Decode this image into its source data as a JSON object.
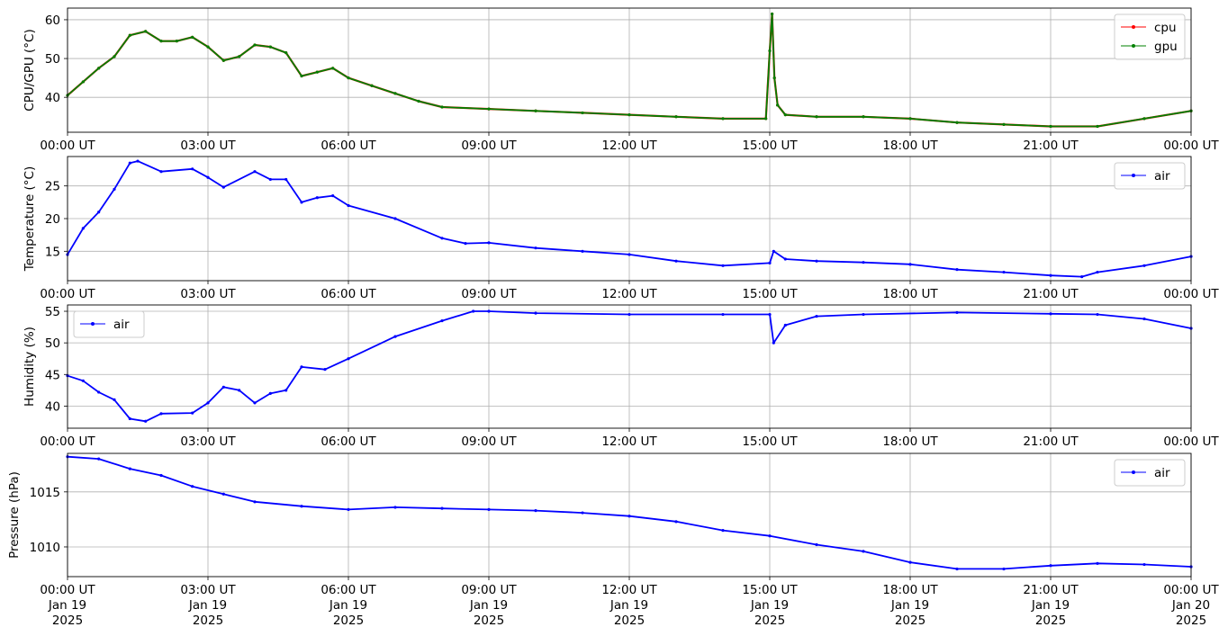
{
  "chart_data": [
    {
      "type": "line",
      "ylabel": "CPU/GPU (°C)",
      "ylim": [
        31,
        63
      ],
      "yticks": [
        40,
        50,
        60
      ],
      "xlim": [
        "2025-01-19T00:00",
        "2025-01-20T00:00"
      ],
      "grid": true,
      "legend_position": "upper-right",
      "x_tick_labels": [
        "00:00 UT",
        "03:00 UT",
        "06:00 UT",
        "09:00 UT",
        "12:00 UT",
        "15:00 UT",
        "18:00 UT",
        "21:00 UT",
        "00:00 UT"
      ],
      "series": [
        {
          "name": "cpu",
          "color": "#ff0000",
          "points": [
            [
              "2025-01-19T00:00",
              40.5
            ],
            [
              "2025-01-19T00:20",
              44
            ],
            [
              "2025-01-19T00:40",
              47.5
            ],
            [
              "2025-01-19T01:00",
              50.5
            ],
            [
              "2025-01-19T01:20",
              56
            ],
            [
              "2025-01-19T01:40",
              57
            ],
            [
              "2025-01-19T02:00",
              54.5
            ],
            [
              "2025-01-19T02:20",
              54.5
            ],
            [
              "2025-01-19T02:40",
              55.5
            ],
            [
              "2025-01-19T03:00",
              53
            ],
            [
              "2025-01-19T03:20",
              49.5
            ],
            [
              "2025-01-19T03:40",
              50.5
            ],
            [
              "2025-01-19T04:00",
              53.5
            ],
            [
              "2025-01-19T04:20",
              53
            ],
            [
              "2025-01-19T04:40",
              51.5
            ],
            [
              "2025-01-19T05:00",
              45.5
            ],
            [
              "2025-01-19T05:20",
              46.5
            ],
            [
              "2025-01-19T05:40",
              47.5
            ],
            [
              "2025-01-19T06:00",
              45
            ],
            [
              "2025-01-19T06:30",
              43
            ],
            [
              "2025-01-19T07:00",
              41
            ],
            [
              "2025-01-19T07:30",
              39
            ],
            [
              "2025-01-19T08:00",
              37.5
            ],
            [
              "2025-01-19T09:00",
              37
            ],
            [
              "2025-01-19T10:00",
              36.5
            ],
            [
              "2025-01-19T11:00",
              36
            ],
            [
              "2025-01-19T12:00",
              35.5
            ],
            [
              "2025-01-19T13:00",
              35
            ],
            [
              "2025-01-19T14:00",
              34.5
            ],
            [
              "2025-01-19T14:55",
              34.5
            ],
            [
              "2025-01-19T15:00",
              52
            ],
            [
              "2025-01-19T15:03",
              61.5
            ],
            [
              "2025-01-19T15:06",
              45
            ],
            [
              "2025-01-19T15:10",
              38
            ],
            [
              "2025-01-19T15:20",
              35.5
            ],
            [
              "2025-01-19T16:00",
              35
            ],
            [
              "2025-01-19T17:00",
              35
            ],
            [
              "2025-01-19T18:00",
              34.5
            ],
            [
              "2025-01-19T19:00",
              33.5
            ],
            [
              "2025-01-19T20:00",
              33
            ],
            [
              "2025-01-19T21:00",
              32.5
            ],
            [
              "2025-01-19T22:00",
              32.5
            ],
            [
              "2025-01-19T23:00",
              34.5
            ],
            [
              "2025-01-20T00:00",
              36.5
            ]
          ]
        },
        {
          "name": "gpu",
          "color": "#008000",
          "points": [
            [
              "2025-01-19T00:00",
              40.5
            ],
            [
              "2025-01-19T00:20",
              44
            ],
            [
              "2025-01-19T00:40",
              47.5
            ],
            [
              "2025-01-19T01:00",
              50.5
            ],
            [
              "2025-01-19T01:20",
              56
            ],
            [
              "2025-01-19T01:40",
              57
            ],
            [
              "2025-01-19T02:00",
              54.5
            ],
            [
              "2025-01-19T02:20",
              54.5
            ],
            [
              "2025-01-19T02:40",
              55.5
            ],
            [
              "2025-01-19T03:00",
              53
            ],
            [
              "2025-01-19T03:20",
              49.5
            ],
            [
              "2025-01-19T03:40",
              50.5
            ],
            [
              "2025-01-19T04:00",
              53.5
            ],
            [
              "2025-01-19T04:20",
              53
            ],
            [
              "2025-01-19T04:40",
              51.5
            ],
            [
              "2025-01-19T05:00",
              45.5
            ],
            [
              "2025-01-19T05:20",
              46.5
            ],
            [
              "2025-01-19T05:40",
              47.5
            ],
            [
              "2025-01-19T06:00",
              45
            ],
            [
              "2025-01-19T06:30",
              43
            ],
            [
              "2025-01-19T07:00",
              41
            ],
            [
              "2025-01-19T07:30",
              39
            ],
            [
              "2025-01-19T08:00",
              37.5
            ],
            [
              "2025-01-19T09:00",
              37
            ],
            [
              "2025-01-19T10:00",
              36.5
            ],
            [
              "2025-01-19T11:00",
              36
            ],
            [
              "2025-01-19T12:00",
              35.5
            ],
            [
              "2025-01-19T13:00",
              35
            ],
            [
              "2025-01-19T14:00",
              34.5
            ],
            [
              "2025-01-19T14:55",
              34.5
            ],
            [
              "2025-01-19T15:00",
              52
            ],
            [
              "2025-01-19T15:03",
              61.5
            ],
            [
              "2025-01-19T15:06",
              45
            ],
            [
              "2025-01-19T15:10",
              38
            ],
            [
              "2025-01-19T15:20",
              35.5
            ],
            [
              "2025-01-19T16:00",
              35
            ],
            [
              "2025-01-19T17:00",
              35
            ],
            [
              "2025-01-19T18:00",
              34.5
            ],
            [
              "2025-01-19T19:00",
              33.5
            ],
            [
              "2025-01-19T20:00",
              33
            ],
            [
              "2025-01-19T21:00",
              32.5
            ],
            [
              "2025-01-19T22:00",
              32.5
            ],
            [
              "2025-01-19T23:00",
              34.5
            ],
            [
              "2025-01-20T00:00",
              36.5
            ]
          ]
        }
      ]
    },
    {
      "type": "line",
      "ylabel": "Temperature (°C)",
      "ylim": [
        10.5,
        29.5
      ],
      "yticks": [
        15,
        20,
        25
      ],
      "xlim": [
        "2025-01-19T00:00",
        "2025-01-20T00:00"
      ],
      "grid": true,
      "legend_position": "upper-right",
      "x_tick_labels": [
        "00:00 UT",
        "03:00 UT",
        "06:00 UT",
        "09:00 UT",
        "12:00 UT",
        "15:00 UT",
        "18:00 UT",
        "21:00 UT",
        "00:00 UT"
      ],
      "series": [
        {
          "name": "air",
          "color": "#0000ff",
          "points": [
            [
              "2025-01-19T00:00",
              14.5
            ],
            [
              "2025-01-19T00:20",
              18.5
            ],
            [
              "2025-01-19T00:40",
              21
            ],
            [
              "2025-01-19T01:00",
              24.5
            ],
            [
              "2025-01-19T01:20",
              28.5
            ],
            [
              "2025-01-19T01:30",
              28.8
            ],
            [
              "2025-01-19T02:00",
              27.2
            ],
            [
              "2025-01-19T02:40",
              27.6
            ],
            [
              "2025-01-19T03:00",
              26.3
            ],
            [
              "2025-01-19T03:20",
              24.8
            ],
            [
              "2025-01-19T04:00",
              27.2
            ],
            [
              "2025-01-19T04:20",
              26
            ],
            [
              "2025-01-19T04:40",
              26
            ],
            [
              "2025-01-19T05:00",
              22.5
            ],
            [
              "2025-01-19T05:20",
              23.2
            ],
            [
              "2025-01-19T05:40",
              23.5
            ],
            [
              "2025-01-19T06:00",
              22
            ],
            [
              "2025-01-19T07:00",
              20
            ],
            [
              "2025-01-19T08:00",
              17
            ],
            [
              "2025-01-19T08:30",
              16.2
            ],
            [
              "2025-01-19T09:00",
              16.3
            ],
            [
              "2025-01-19T10:00",
              15.5
            ],
            [
              "2025-01-19T11:00",
              15
            ],
            [
              "2025-01-19T12:00",
              14.5
            ],
            [
              "2025-01-19T13:00",
              13.5
            ],
            [
              "2025-01-19T14:00",
              12.8
            ],
            [
              "2025-01-19T15:00",
              13.2
            ],
            [
              "2025-01-19T15:05",
              15
            ],
            [
              "2025-01-19T15:20",
              13.8
            ],
            [
              "2025-01-19T16:00",
              13.5
            ],
            [
              "2025-01-19T17:00",
              13.3
            ],
            [
              "2025-01-19T18:00",
              13
            ],
            [
              "2025-01-19T19:00",
              12.2
            ],
            [
              "2025-01-19T20:00",
              11.8
            ],
            [
              "2025-01-19T21:00",
              11.3
            ],
            [
              "2025-01-19T21:40",
              11.1
            ],
            [
              "2025-01-19T22:00",
              11.8
            ],
            [
              "2025-01-19T23:00",
              12.8
            ],
            [
              "2025-01-20T00:00",
              14.2
            ]
          ]
        }
      ]
    },
    {
      "type": "line",
      "ylabel": "Humidity (%)",
      "ylim": [
        36.5,
        56
      ],
      "yticks": [
        40,
        45,
        50,
        55
      ],
      "xlim": [
        "2025-01-19T00:00",
        "2025-01-20T00:00"
      ],
      "grid": true,
      "legend_position": "upper-left",
      "x_tick_labels": [
        "00:00 UT",
        "03:00 UT",
        "06:00 UT",
        "09:00 UT",
        "12:00 UT",
        "15:00 UT",
        "18:00 UT",
        "21:00 UT",
        "00:00 UT"
      ],
      "series": [
        {
          "name": "air",
          "color": "#0000ff",
          "points": [
            [
              "2025-01-19T00:00",
              44.8
            ],
            [
              "2025-01-19T00:20",
              44
            ],
            [
              "2025-01-19T00:40",
              42.2
            ],
            [
              "2025-01-19T01:00",
              41
            ],
            [
              "2025-01-19T01:20",
              38
            ],
            [
              "2025-01-19T01:40",
              37.6
            ],
            [
              "2025-01-19T02:00",
              38.8
            ],
            [
              "2025-01-19T02:40",
              38.9
            ],
            [
              "2025-01-19T03:00",
              40.5
            ],
            [
              "2025-01-19T03:20",
              43
            ],
            [
              "2025-01-19T03:40",
              42.5
            ],
            [
              "2025-01-19T04:00",
              40.5
            ],
            [
              "2025-01-19T04:20",
              42
            ],
            [
              "2025-01-19T04:40",
              42.5
            ],
            [
              "2025-01-19T05:00",
              46.2
            ],
            [
              "2025-01-19T05:30",
              45.8
            ],
            [
              "2025-01-19T06:00",
              47.5
            ],
            [
              "2025-01-19T07:00",
              51
            ],
            [
              "2025-01-19T08:00",
              53.5
            ],
            [
              "2025-01-19T08:40",
              55
            ],
            [
              "2025-01-19T09:00",
              55
            ],
            [
              "2025-01-19T10:00",
              54.7
            ],
            [
              "2025-01-19T12:00",
              54.5
            ],
            [
              "2025-01-19T14:00",
              54.5
            ],
            [
              "2025-01-19T15:00",
              54.5
            ],
            [
              "2025-01-19T15:05",
              50
            ],
            [
              "2025-01-19T15:20",
              52.8
            ],
            [
              "2025-01-19T16:00",
              54.2
            ],
            [
              "2025-01-19T17:00",
              54.5
            ],
            [
              "2025-01-19T19:00",
              54.8
            ],
            [
              "2025-01-19T21:00",
              54.6
            ],
            [
              "2025-01-19T22:00",
              54.5
            ],
            [
              "2025-01-19T23:00",
              53.8
            ],
            [
              "2025-01-20T00:00",
              52.3
            ]
          ]
        }
      ]
    },
    {
      "type": "line",
      "ylabel": "Pressure (hPa)",
      "ylim": [
        1007.3,
        1018.5
      ],
      "yticks": [
        1010,
        1015
      ],
      "xlim": [
        "2025-01-19T00:00",
        "2025-01-20T00:00"
      ],
      "grid": true,
      "legend_position": "upper-right",
      "x_tick_labels": [
        "00:00 UT\nJan 19\n2025",
        "03:00 UT\nJan 19\n2025",
        "06:00 UT\nJan 19\n2025",
        "09:00 UT\nJan 19\n2025",
        "12:00 UT\nJan 19\n2025",
        "15:00 UT\nJan 19\n2025",
        "18:00 UT\nJan 19\n2025",
        "21:00 UT\nJan 19\n2025",
        "00:00 UT\nJan 20\n2025"
      ],
      "series": [
        {
          "name": "air",
          "color": "#0000ff",
          "points": [
            [
              "2025-01-19T00:00",
              1018.2
            ],
            [
              "2025-01-19T00:40",
              1018
            ],
            [
              "2025-01-19T01:20",
              1017.1
            ],
            [
              "2025-01-19T02:00",
              1016.5
            ],
            [
              "2025-01-19T02:40",
              1015.5
            ],
            [
              "2025-01-19T03:20",
              1014.8
            ],
            [
              "2025-01-19T04:00",
              1014.1
            ],
            [
              "2025-01-19T05:00",
              1013.7
            ],
            [
              "2025-01-19T06:00",
              1013.4
            ],
            [
              "2025-01-19T07:00",
              1013.6
            ],
            [
              "2025-01-19T08:00",
              1013.5
            ],
            [
              "2025-01-19T09:00",
              1013.4
            ],
            [
              "2025-01-19T10:00",
              1013.3
            ],
            [
              "2025-01-19T11:00",
              1013.1
            ],
            [
              "2025-01-19T12:00",
              1012.8
            ],
            [
              "2025-01-19T13:00",
              1012.3
            ],
            [
              "2025-01-19T14:00",
              1011.5
            ],
            [
              "2025-01-19T15:00",
              1011
            ],
            [
              "2025-01-19T16:00",
              1010.2
            ],
            [
              "2025-01-19T17:00",
              1009.6
            ],
            [
              "2025-01-19T18:00",
              1008.6
            ],
            [
              "2025-01-19T19:00",
              1008
            ],
            [
              "2025-01-19T20:00",
              1008
            ],
            [
              "2025-01-19T21:00",
              1008.3
            ],
            [
              "2025-01-19T22:00",
              1008.5
            ],
            [
              "2025-01-19T23:00",
              1008.4
            ],
            [
              "2025-01-20T00:00",
              1008.2
            ]
          ]
        }
      ]
    }
  ]
}
